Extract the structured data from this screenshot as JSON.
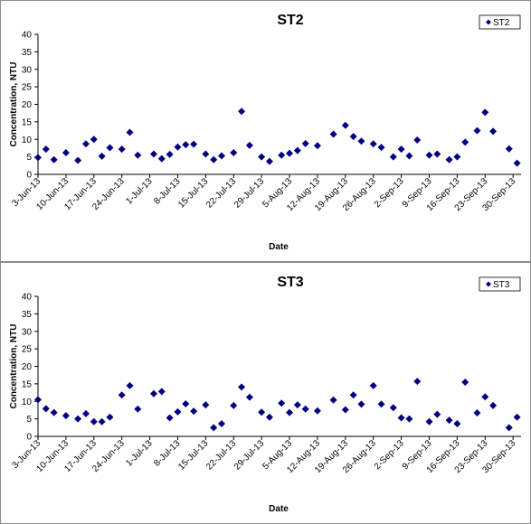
{
  "chart_data": [
    {
      "type": "scatter",
      "title": "ST2",
      "xlabel": "Date",
      "ylabel": "Concentration, NTU",
      "ylim": [
        0,
        40
      ],
      "yticks": [
        0,
        5,
        10,
        15,
        20,
        25,
        30,
        35,
        40
      ],
      "xticks": [
        "3-Jun-13",
        "10-Jun-13",
        "17-Jun-13",
        "24-Jun-13",
        "1-Jul-13",
        "8-Jul-13",
        "15-Jul-13",
        "22-Jul-13",
        "29-Jul-13",
        "5-Aug-13",
        "12-Aug-13",
        "19-Aug-13",
        "26-Aug-13",
        "2-Sep-13",
        "9-Sep-13",
        "16-Sep-13",
        "23-Sep-13",
        "30-Sep-13"
      ],
      "xlim": [
        "3-Jun-13",
        "2-Oct-13"
      ],
      "legend_position": "top-right",
      "marker": "diamond",
      "color": "#00007F",
      "series": [
        {
          "name": "ST2",
          "points": [
            [
              "3-Jun-13",
              4.8
            ],
            [
              "5-Jun-13",
              7.2
            ],
            [
              "7-Jun-13",
              4.2
            ],
            [
              "10-Jun-13",
              6.2
            ],
            [
              "13-Jun-13",
              4.0
            ],
            [
              "15-Jun-13",
              8.7
            ],
            [
              "17-Jun-13",
              10.0
            ],
            [
              "19-Jun-13",
              5.2
            ],
            [
              "21-Jun-13",
              7.6
            ],
            [
              "24-Jun-13",
              7.2
            ],
            [
              "26-Jun-13",
              12.0
            ],
            [
              "28-Jun-13",
              5.5
            ],
            [
              "2-Jul-13",
              5.8
            ],
            [
              "4-Jul-13",
              4.5
            ],
            [
              "6-Jul-13",
              5.7
            ],
            [
              "8-Jul-13",
              7.8
            ],
            [
              "10-Jul-13",
              8.5
            ],
            [
              "12-Jul-13",
              8.6
            ],
            [
              "15-Jul-13",
              5.8
            ],
            [
              "17-Jul-13",
              4.2
            ],
            [
              "19-Jul-13",
              5.3
            ],
            [
              "22-Jul-13",
              6.2
            ],
            [
              "24-Jul-13",
              18.0
            ],
            [
              "26-Jul-13",
              8.3
            ],
            [
              "29-Jul-13",
              5.0
            ],
            [
              "31-Jul-13",
              3.7
            ],
            [
              "3-Aug-13",
              5.5
            ],
            [
              "5-Aug-13",
              6.0
            ],
            [
              "7-Aug-13",
              6.8
            ],
            [
              "9-Aug-13",
              8.8
            ],
            [
              "12-Aug-13",
              8.2
            ],
            [
              "16-Aug-13",
              11.5
            ],
            [
              "19-Aug-13",
              14.0
            ],
            [
              "21-Aug-13",
              10.8
            ],
            [
              "23-Aug-13",
              9.5
            ],
            [
              "26-Aug-13",
              8.7
            ],
            [
              "28-Aug-13",
              7.7
            ],
            [
              "31-Aug-13",
              5.0
            ],
            [
              "2-Sep-13",
              7.2
            ],
            [
              "4-Sep-13",
              5.3
            ],
            [
              "6-Sep-13",
              9.8
            ],
            [
              "9-Sep-13",
              5.5
            ],
            [
              "11-Sep-13",
              5.8
            ],
            [
              "14-Sep-13",
              4.2
            ],
            [
              "16-Sep-13",
              5.0
            ],
            [
              "18-Sep-13",
              9.2
            ],
            [
              "21-Sep-13",
              12.5
            ],
            [
              "23-Sep-13",
              17.7
            ],
            [
              "25-Sep-13",
              12.3
            ],
            [
              "29-Sep-13",
              7.3
            ],
            [
              "1-Oct-13",
              3.2
            ]
          ]
        }
      ]
    },
    {
      "type": "scatter",
      "title": "ST3",
      "xlabel": "Date",
      "ylabel": "Concentration, NTU",
      "ylim": [
        0,
        40
      ],
      "yticks": [
        0,
        5,
        10,
        15,
        20,
        25,
        30,
        35,
        40
      ],
      "xticks": [
        "3-Jun-13",
        "10-Jun-13",
        "17-Jun-13",
        "24-Jun-13",
        "1-Jul-13",
        "8-Jul-13",
        "15-Jul-13",
        "22-Jul-13",
        "29-Jul-13",
        "5-Aug-13",
        "12-Aug-13",
        "19-Aug-13",
        "26-Aug-13",
        "2-Sep-13",
        "9-Sep-13",
        "16-Sep-13",
        "23-Sep-13",
        "30-Sep-13"
      ],
      "xlim": [
        "3-Jun-13",
        "2-Oct-13"
      ],
      "legend_position": "top-right",
      "marker": "diamond",
      "color": "#00007F",
      "series": [
        {
          "name": "ST3",
          "points": [
            [
              "3-Jun-13",
              10.5
            ],
            [
              "5-Jun-13",
              7.9
            ],
            [
              "7-Jun-13",
              6.8
            ],
            [
              "10-Jun-13",
              5.9
            ],
            [
              "13-Jun-13",
              5.0
            ],
            [
              "15-Jun-13",
              6.5
            ],
            [
              "17-Jun-13",
              4.2
            ],
            [
              "19-Jun-13",
              4.2
            ],
            [
              "21-Jun-13",
              5.5
            ],
            [
              "24-Jun-13",
              11.8
            ],
            [
              "26-Jun-13",
              14.5
            ],
            [
              "28-Jun-13",
              7.8
            ],
            [
              "2-Jul-13",
              12.2
            ],
            [
              "4-Jul-13",
              12.8
            ],
            [
              "6-Jul-13",
              5.3
            ],
            [
              "8-Jul-13",
              7.0
            ],
            [
              "10-Jul-13",
              9.3
            ],
            [
              "12-Jul-13",
              7.2
            ],
            [
              "15-Jul-13",
              9.0
            ],
            [
              "17-Jul-13",
              2.5
            ],
            [
              "19-Jul-13",
              3.6
            ],
            [
              "22-Jul-13",
              8.8
            ],
            [
              "24-Jul-13",
              14.1
            ],
            [
              "26-Jul-13",
              11.2
            ],
            [
              "29-Jul-13",
              6.9
            ],
            [
              "31-Jul-13",
              5.5
            ],
            [
              "3-Aug-13",
              9.5
            ],
            [
              "5-Aug-13",
              6.8
            ],
            [
              "7-Aug-13",
              9.0
            ],
            [
              "9-Aug-13",
              7.8
            ],
            [
              "12-Aug-13",
              7.3
            ],
            [
              "16-Aug-13",
              10.4
            ],
            [
              "19-Aug-13",
              7.6
            ],
            [
              "21-Aug-13",
              11.8
            ],
            [
              "23-Aug-13",
              9.2
            ],
            [
              "26-Aug-13",
              14.5
            ],
            [
              "28-Aug-13",
              9.2
            ],
            [
              "31-Aug-13",
              8.2
            ],
            [
              "2-Sep-13",
              5.3
            ],
            [
              "4-Sep-13",
              5.0
            ],
            [
              "6-Sep-13",
              15.7
            ],
            [
              "9-Sep-13",
              4.2
            ],
            [
              "11-Sep-13",
              6.3
            ],
            [
              "14-Sep-13",
              4.6
            ],
            [
              "16-Sep-13",
              3.6
            ],
            [
              "18-Sep-13",
              15.5
            ],
            [
              "21-Sep-13",
              6.7
            ],
            [
              "23-Sep-13",
              11.3
            ],
            [
              "25-Sep-13",
              8.8
            ],
            [
              "29-Sep-13",
              2.5
            ],
            [
              "1-Oct-13",
              5.5
            ]
          ]
        }
      ]
    }
  ]
}
